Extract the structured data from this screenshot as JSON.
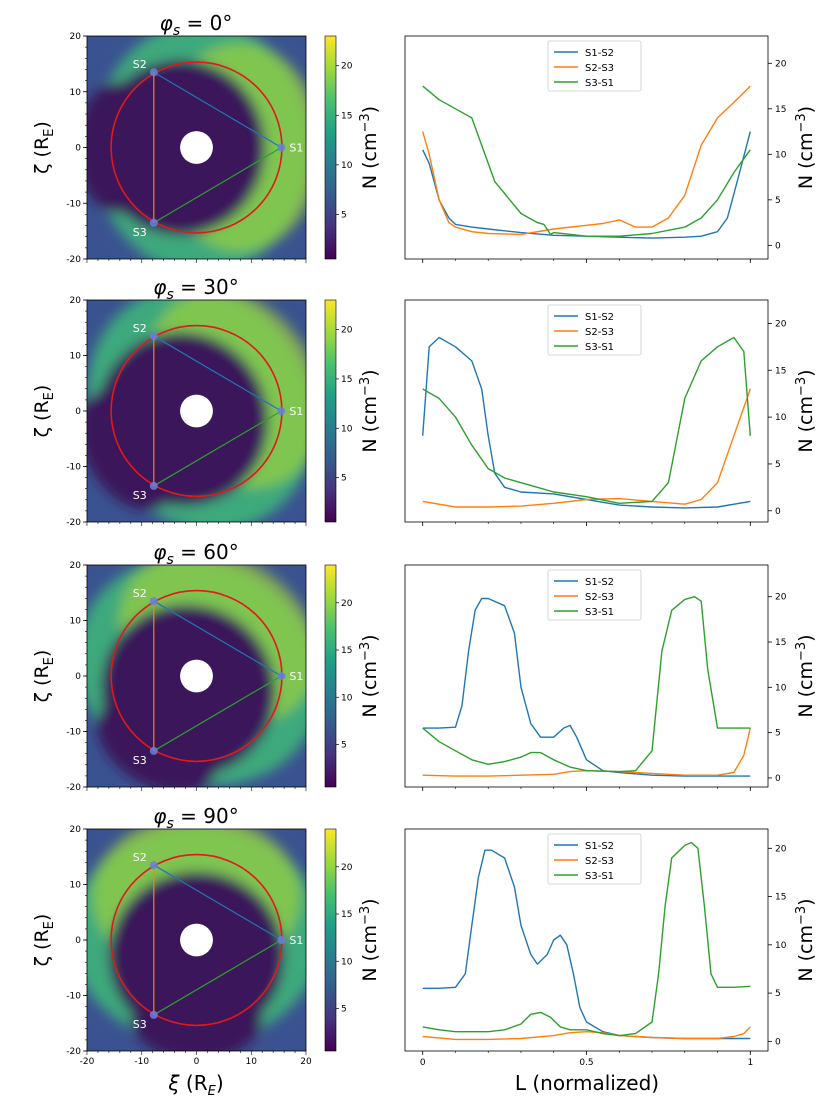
{
  "colors": {
    "s1s2": "#1f77b4",
    "s2s3": "#ff7f0e",
    "s3s1": "#2ca02c",
    "circle": "#e0191b",
    "marker": "#6a7fd8",
    "map_bg": "#3a5390",
    "map_cavity": "#3b175a",
    "map_sheath": "#3fb27a",
    "map_peak": "#b6de2b"
  },
  "colormap": [
    "#440154",
    "#46327e",
    "#365c8d",
    "#277f8e",
    "#1fa187",
    "#4ac16d",
    "#a0da39",
    "#fde725"
  ],
  "labels": {
    "zeta_axis": "ζ (R",
    "zeta_sub": "E",
    "xi_axis": "ξ (R",
    "xi_sub": "E",
    "density_axis": "N (cm",
    "density_sup": "−3",
    "length_axis": "L (normalized)",
    "phi": "φ",
    "phi_sub": "s",
    "eq": " = ",
    "deg": "°"
  },
  "station_labels": [
    "S1",
    "S2",
    "S3"
  ],
  "chart_data": [
    {
      "type": "line",
      "title": "φs = 0°",
      "phi_value": "0",
      "xlabel": "L (normalized)",
      "ylabel": "N (cm−3)",
      "xlim": [
        0,
        1
      ],
      "ylim": [
        -1.5,
        23
      ],
      "yticks": [
        0,
        5,
        10,
        15,
        20
      ],
      "xticks": [
        "0",
        "0.5",
        "1"
      ],
      "colorbar_ticks": [
        5,
        10,
        15,
        20
      ],
      "colorbar_range": [
        0.5,
        23
      ],
      "stations": {
        "S1": [
          15.5,
          0
        ],
        "S2": [
          -7.8,
          13.5
        ],
        "S3": [
          -7.8,
          -13.5
        ]
      },
      "legend": [
        "S1-S2",
        "S2-S3",
        "S3-S1"
      ],
      "series": [
        {
          "name": "S1-S2",
          "x": [
            0,
            0.02,
            0.05,
            0.08,
            0.1,
            0.15,
            0.2,
            0.3,
            0.4,
            0.5,
            0.6,
            0.7,
            0.8,
            0.85,
            0.9,
            0.93,
            0.96,
            1
          ],
          "y": [
            10.5,
            9,
            5,
            3,
            2.3,
            2,
            1.8,
            1.4,
            1.1,
            1,
            0.9,
            0.8,
            0.9,
            1,
            1.5,
            3,
            7,
            12.5
          ]
        },
        {
          "name": "S2-S3",
          "x": [
            0,
            0.02,
            0.05,
            0.08,
            0.1,
            0.15,
            0.2,
            0.3,
            0.4,
            0.5,
            0.55,
            0.6,
            0.65,
            0.7,
            0.75,
            0.8,
            0.85,
            0.9,
            0.95,
            1
          ],
          "y": [
            12.5,
            10,
            5,
            2.5,
            2,
            1.5,
            1.3,
            1.2,
            1.8,
            2.2,
            2.4,
            2.8,
            2,
            2,
            3,
            5.5,
            11,
            14,
            15.7,
            17.5
          ]
        },
        {
          "name": "S3-S1",
          "x": [
            0,
            0.05,
            0.1,
            0.15,
            0.18,
            0.22,
            0.3,
            0.35,
            0.37,
            0.39,
            0.4,
            0.5,
            0.6,
            0.7,
            0.8,
            0.85,
            0.9,
            0.95,
            1
          ],
          "y": [
            17.5,
            16,
            15,
            14,
            11,
            7,
            3.5,
            2.5,
            2.3,
            1.2,
            1.4,
            1,
            1,
            1.3,
            2,
            3,
            5,
            8,
            10.5
          ]
        }
      ]
    },
    {
      "type": "line",
      "title": "φs = 30°",
      "phi_value": "30",
      "xlabel": "L (normalized)",
      "ylabel": "N (cm−3)",
      "xlim": [
        0,
        1
      ],
      "ylim": [
        -1.2,
        22.5
      ],
      "yticks": [
        0,
        5,
        10,
        15,
        20
      ],
      "xticks": [
        "0",
        "0.5",
        "1"
      ],
      "colorbar_ticks": [
        5,
        10,
        15,
        20
      ],
      "colorbar_range": [
        0.5,
        23
      ],
      "stations": {
        "S1": [
          15.5,
          0
        ],
        "S2": [
          -7.8,
          13.5
        ],
        "S3": [
          -7.8,
          -13.5
        ]
      },
      "legend": [
        "S1-S2",
        "S2-S3",
        "S3-S1"
      ],
      "series": [
        {
          "name": "S1-S2",
          "x": [
            0,
            0.02,
            0.05,
            0.1,
            0.15,
            0.18,
            0.2,
            0.22,
            0.25,
            0.3,
            0.4,
            0.5,
            0.6,
            0.7,
            0.8,
            0.9,
            1
          ],
          "y": [
            8,
            17.5,
            18.5,
            17.5,
            16,
            13,
            8,
            4,
            2.5,
            2,
            1.8,
            1.2,
            0.6,
            0.4,
            0.3,
            0.4,
            1
          ]
        },
        {
          "name": "S2-S3",
          "x": [
            0,
            0.1,
            0.2,
            0.3,
            0.4,
            0.5,
            0.6,
            0.7,
            0.8,
            0.85,
            0.9,
            0.95,
            1
          ],
          "y": [
            1,
            0.4,
            0.4,
            0.5,
            0.8,
            1.2,
            1.3,
            1,
            0.7,
            1.2,
            3,
            8,
            13
          ]
        },
        {
          "name": "S3-S1",
          "x": [
            0,
            0.05,
            0.1,
            0.15,
            0.2,
            0.25,
            0.3,
            0.35,
            0.4,
            0.5,
            0.6,
            0.7,
            0.75,
            0.8,
            0.85,
            0.9,
            0.95,
            0.98,
            1
          ],
          "y": [
            13,
            12,
            10,
            7,
            4.5,
            3.5,
            3,
            2.5,
            2,
            1.5,
            0.8,
            1,
            3,
            12,
            16,
            17.5,
            18.5,
            17,
            8
          ]
        }
      ]
    },
    {
      "type": "line",
      "title": "φs = 60°",
      "phi_value": "60",
      "xlabel": "L (normalized)",
      "ylabel": "N (cm−3)",
      "xlim": [
        0,
        1
      ],
      "ylim": [
        -1,
        23.5
      ],
      "yticks": [
        0,
        5,
        10,
        15,
        20
      ],
      "xticks": [
        "0",
        "0.5",
        "1"
      ],
      "colorbar_ticks": [
        5,
        10,
        15,
        20
      ],
      "colorbar_range": [
        0.5,
        24
      ],
      "stations": {
        "S1": [
          15.5,
          0
        ],
        "S2": [
          -7.8,
          13.5
        ],
        "S3": [
          -7.8,
          -13.5
        ]
      },
      "legend": [
        "S1-S2",
        "S2-S3",
        "S3-S1"
      ],
      "series": [
        {
          "name": "S1-S2",
          "x": [
            0,
            0.05,
            0.1,
            0.12,
            0.14,
            0.16,
            0.18,
            0.2,
            0.25,
            0.28,
            0.3,
            0.33,
            0.36,
            0.4,
            0.43,
            0.45,
            0.47,
            0.5,
            0.55,
            0.6,
            0.7,
            0.8,
            0.9,
            1
          ],
          "y": [
            5.5,
            5.5,
            5.6,
            8,
            14,
            18.5,
            19.8,
            19.8,
            19,
            16,
            10,
            6,
            4.5,
            4.5,
            5.5,
            5.8,
            4.5,
            2,
            0.8,
            0.6,
            0.3,
            0.2,
            0.2,
            0.2
          ]
        },
        {
          "name": "S2-S3",
          "x": [
            0,
            0.1,
            0.2,
            0.3,
            0.4,
            0.45,
            0.5,
            0.6,
            0.7,
            0.8,
            0.9,
            0.95,
            0.98,
            1
          ],
          "y": [
            0.3,
            0.2,
            0.2,
            0.3,
            0.4,
            0.7,
            0.8,
            0.7,
            0.5,
            0.3,
            0.3,
            0.6,
            2.5,
            5.5
          ]
        },
        {
          "name": "S3-S1",
          "x": [
            0,
            0.05,
            0.1,
            0.15,
            0.2,
            0.25,
            0.3,
            0.33,
            0.36,
            0.4,
            0.45,
            0.5,
            0.6,
            0.65,
            0.7,
            0.73,
            0.76,
            0.8,
            0.83,
            0.85,
            0.87,
            0.9,
            0.95,
            1
          ],
          "y": [
            5.5,
            4,
            3,
            2,
            1.5,
            1.8,
            2.3,
            2.8,
            2.8,
            2,
            1.2,
            0.8,
            0.7,
            0.8,
            3,
            14,
            18.5,
            19.7,
            20,
            19.5,
            12,
            5.5,
            5.5,
            5.5
          ]
        }
      ]
    },
    {
      "type": "line",
      "title": "φs = 90°",
      "phi_value": "90",
      "xlabel": "L (normalized)",
      "ylabel": "N (cm−3)",
      "xlim": [
        0,
        1
      ],
      "ylim": [
        -1,
        22
      ],
      "yticks": [
        0,
        5,
        10,
        15,
        20
      ],
      "xticks": [
        "0",
        "0.5",
        "1"
      ],
      "colorbar_ticks": [
        5,
        10,
        15,
        20
      ],
      "colorbar_range": [
        0.5,
        24
      ],
      "stations": {
        "S1": [
          15.5,
          0
        ],
        "S2": [
          -7.8,
          13.5
        ],
        "S3": [
          -7.8,
          -13.5
        ]
      },
      "legend": [
        "S1-S2",
        "S2-S3",
        "S3-S1"
      ],
      "series": [
        {
          "name": "S1-S2",
          "x": [
            0,
            0.05,
            0.1,
            0.13,
            0.15,
            0.17,
            0.19,
            0.21,
            0.25,
            0.28,
            0.3,
            0.33,
            0.35,
            0.38,
            0.4,
            0.42,
            0.44,
            0.46,
            0.48,
            0.5,
            0.55,
            0.6,
            0.7,
            0.8,
            0.9,
            1
          ],
          "y": [
            5.5,
            5.5,
            5.6,
            7,
            12,
            17,
            19.8,
            19.8,
            19,
            16,
            12,
            9,
            8,
            9,
            10.5,
            11,
            10,
            7,
            3.5,
            2,
            1,
            0.6,
            0.4,
            0.3,
            0.3,
            0.3
          ]
        },
        {
          "name": "S2-S3",
          "x": [
            0,
            0.1,
            0.2,
            0.3,
            0.4,
            0.45,
            0.5,
            0.55,
            0.6,
            0.7,
            0.8,
            0.9,
            0.95,
            0.98,
            1
          ],
          "y": [
            0.5,
            0.2,
            0.2,
            0.3,
            0.6,
            0.9,
            1,
            0.9,
            0.6,
            0.4,
            0.3,
            0.3,
            0.5,
            0.8,
            1.5
          ]
        },
        {
          "name": "S3-S1",
          "x": [
            0,
            0.05,
            0.1,
            0.15,
            0.2,
            0.25,
            0.3,
            0.33,
            0.36,
            0.39,
            0.42,
            0.45,
            0.5,
            0.55,
            0.6,
            0.65,
            0.7,
            0.72,
            0.74,
            0.76,
            0.8,
            0.82,
            0.84,
            0.86,
            0.88,
            0.9,
            0.95,
            1
          ],
          "y": [
            1.5,
            1.2,
            1,
            1,
            1,
            1.2,
            1.8,
            2.8,
            3,
            2.5,
            1.5,
            1.2,
            1.2,
            0.8,
            0.6,
            0.8,
            2,
            7,
            14,
            19,
            20.3,
            20.6,
            20,
            14,
            7,
            5.6,
            5.6,
            5.7
          ]
        }
      ]
    }
  ]
}
